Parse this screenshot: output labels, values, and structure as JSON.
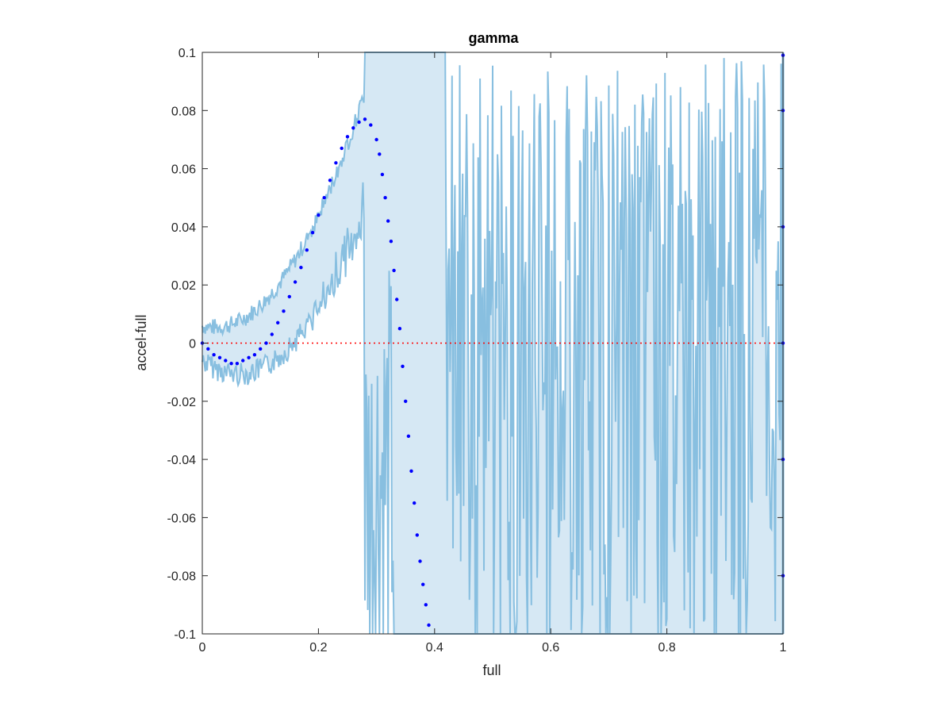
{
  "chart_data": {
    "type": "scatter",
    "title": "gamma",
    "xlabel": "full",
    "ylabel": "accel-full",
    "xlim": [
      0,
      1
    ],
    "ylim": [
      -0.1,
      0.1
    ],
    "x_ticks": [
      "0",
      "0.2",
      "0.4",
      "0.6",
      "0.8",
      "1"
    ],
    "y_ticks": [
      "-0.1",
      "-0.08",
      "-0.06",
      "-0.04",
      "-0.02",
      "0",
      "0.02",
      "0.04",
      "0.06",
      "0.08",
      "0.1"
    ],
    "x_tick_values": [
      0,
      0.2,
      0.4,
      0.6,
      0.8,
      1
    ],
    "y_tick_values": [
      -0.1,
      -0.08,
      -0.06,
      -0.04,
      -0.02,
      0,
      0.02,
      0.04,
      0.06,
      0.08,
      0.1
    ],
    "reference_line": {
      "y": 0,
      "style": "dotted",
      "color": "#ff0000"
    },
    "series": [
      {
        "kind": "points",
        "color": "#0000ff",
        "x": [
          0.0,
          0.01,
          0.02,
          0.03,
          0.04,
          0.05,
          0.06,
          0.07,
          0.08,
          0.09,
          0.1,
          0.11,
          0.12,
          0.13,
          0.14,
          0.15,
          0.16,
          0.17,
          0.18,
          0.19,
          0.2,
          0.21,
          0.22,
          0.23,
          0.24,
          0.25,
          0.26,
          0.27,
          0.28,
          0.29,
          0.3,
          0.305,
          0.31,
          0.315,
          0.32,
          0.325,
          0.33,
          0.335,
          0.34,
          0.345,
          0.35,
          0.355,
          0.36,
          0.365,
          0.37,
          0.375,
          0.38,
          0.385,
          0.39,
          1.0,
          1.0,
          1.0,
          1.0,
          1.0,
          1.0
        ],
        "y": [
          0.0,
          -0.002,
          -0.004,
          -0.005,
          -0.006,
          -0.007,
          -0.007,
          -0.006,
          -0.005,
          -0.004,
          -0.002,
          0.0,
          0.003,
          0.007,
          0.011,
          0.016,
          0.021,
          0.026,
          0.032,
          0.038,
          0.044,
          0.05,
          0.056,
          0.062,
          0.067,
          0.071,
          0.074,
          0.076,
          0.077,
          0.075,
          0.07,
          0.065,
          0.058,
          0.05,
          0.042,
          0.035,
          0.025,
          0.015,
          0.005,
          -0.008,
          -0.02,
          -0.032,
          -0.044,
          -0.055,
          -0.066,
          -0.075,
          -0.083,
          -0.09,
          -0.097,
          0.099,
          0.08,
          0.04,
          0.0,
          -0.04,
          -0.08
        ]
      }
    ],
    "band_color": "#88bfe0",
    "band_fill_color": "#d6e8f4"
  }
}
